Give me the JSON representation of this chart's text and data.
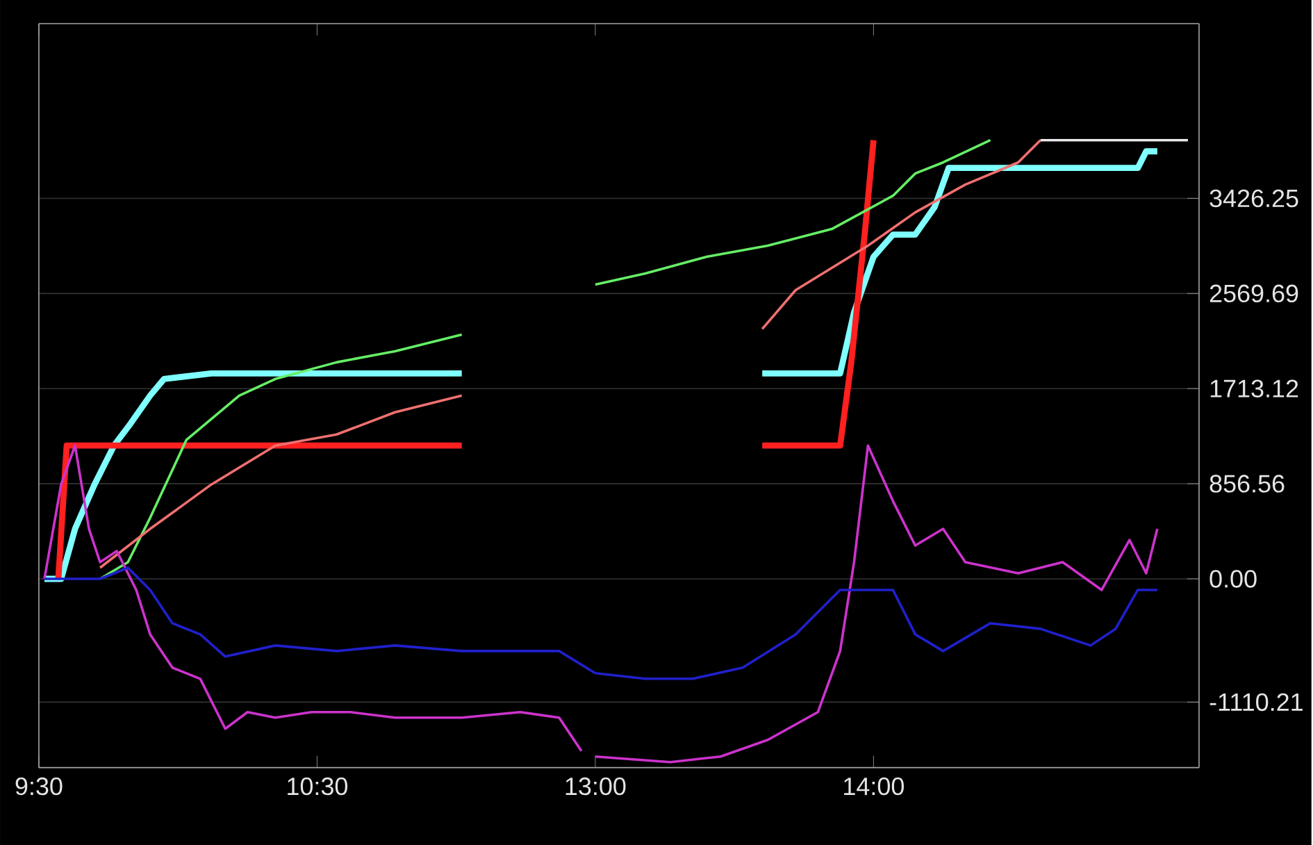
{
  "chart_data": [
    {
      "type": "line",
      "xlim": [
        9.5,
        11.5
      ],
      "ylim": [
        -1700,
        5000
      ],
      "xticks": [
        {
          "value": 9.5,
          "label": "9:30"
        },
        {
          "value": 10.5,
          "label": "10:30"
        }
      ],
      "yticks": [
        3426.25,
        2569.69,
        1713.12,
        856.56,
        0,
        -1110.21
      ],
      "tick_labels": "x",
      "grid": "y",
      "series": [
        {
          "color": "#7fffff",
          "x": [
            9.52,
            9.58,
            9.63,
            9.7,
            9.77,
            9.83,
            9.9,
            9.95,
            10.12,
            11.02
          ],
          "values": [
            0,
            0,
            450,
            850,
            1200,
            1400,
            1650,
            1800,
            1850,
            1850
          ]
        },
        {
          "color": "#ff2020",
          "x": [
            9.57,
            9.6,
            11.02
          ],
          "values": [
            0,
            1200,
            1200
          ]
        },
        {
          "color": "#66ee66",
          "x": [
            9.72,
            9.82,
            9.9,
            10.03,
            10.22,
            10.35,
            10.57,
            10.78,
            11.02
          ],
          "values": [
            0,
            150,
            550,
            1250,
            1650,
            1800,
            1950,
            2050,
            2200
          ]
        },
        {
          "color": "#f07070",
          "x": [
            9.72,
            9.9,
            10.12,
            10.35,
            10.57,
            10.78,
            11.02
          ],
          "values": [
            100,
            450,
            850,
            1200,
            1300,
            1500,
            1650
          ]
        },
        {
          "color": "#cc33cc",
          "x": [
            9.52,
            9.58,
            9.63,
            9.68,
            9.72,
            9.78,
            9.85,
            9.9,
            9.98,
            10.08,
            10.17,
            10.25,
            10.35,
            10.48,
            10.62,
            10.78,
            11.02,
            11.23,
            11.37,
            11.45
          ],
          "values": [
            0,
            850,
            1200,
            450,
            150,
            250,
            -100,
            -500,
            -800,
            -900,
            -1350,
            -1200,
            -1250,
            -1200,
            -1200,
            -1250,
            -1250,
            -1200,
            -1250,
            -1550
          ]
        },
        {
          "color": "#2020cc",
          "x": [
            9.52,
            9.72,
            9.82,
            9.9,
            9.98,
            10.08,
            10.17,
            10.35,
            10.57,
            10.78,
            11.02,
            11.23,
            11.37,
            11.5
          ],
          "values": [
            0,
            0,
            100,
            -100,
            -400,
            -500,
            -700,
            -600,
            -650,
            -600,
            -650,
            -650,
            -650,
            -850
          ]
        }
      ]
    },
    {
      "type": "line",
      "xlim": [
        13,
        15.17
      ],
      "ylim": [
        -1700,
        5000
      ],
      "xticks": [
        {
          "value": 13,
          "label": "13:00"
        },
        {
          "value": 14,
          "label": "14:00"
        }
      ],
      "yticks": [
        3426.25,
        2569.69,
        1713.12,
        856.56,
        {
          "value": 0,
          "label": "0.00"
        },
        -1110.21
      ],
      "grid": "y",
      "series": [
        {
          "color": "#7fffff",
          "x": [
            13.6,
            13.88,
            13.93,
            14,
            14.07,
            14.15,
            14.22,
            14.27,
            14.95,
            14.98,
            15.02
          ],
          "values": [
            1850,
            1850,
            2400,
            2900,
            3100,
            3100,
            3350,
            3700,
            3700,
            3850,
            3850
          ]
        },
        {
          "color": "#ff2020",
          "x": [
            13.6,
            13.88,
            13.92,
            13.97,
            14
          ],
          "values": [
            1200,
            1200,
            1950,
            3150,
            3950
          ]
        },
        {
          "color": "#66ee66",
          "x": [
            13,
            13.18,
            13.4,
            13.62,
            13.85,
            14.07,
            14.15,
            14.25,
            14.42
          ],
          "values": [
            2650,
            2750,
            2900,
            3000,
            3150,
            3450,
            3650,
            3750,
            3950
          ]
        },
        {
          "color": "#f07070",
          "x": [
            13.6,
            13.72,
            13.85,
            13.98,
            14.15,
            14.33,
            14.52,
            14.6
          ],
          "values": [
            2250,
            2600,
            2800,
            3000,
            3300,
            3550,
            3750,
            3950
          ]
        },
        {
          "color": "#e8e8e8",
          "x": [
            14.6,
            15.13
          ],
          "values": [
            3950,
            3950
          ]
        },
        {
          "color": "#cc33cc",
          "x": [
            13,
            13.27,
            13.45,
            13.62,
            13.8,
            13.88,
            13.93,
            13.98,
            14.07,
            14.15,
            14.25,
            14.33,
            14.52,
            14.68,
            14.82,
            14.92,
            14.98,
            15.02
          ],
          "values": [
            -1600,
            -1650,
            -1600,
            -1450,
            -1200,
            -650,
            150,
            1200,
            700,
            300,
            450,
            150,
            50,
            150,
            -100,
            350,
            50,
            450
          ]
        },
        {
          "color": "#2020cc",
          "x": [
            13,
            13.18,
            13.35,
            13.53,
            13.72,
            13.88,
            14.07,
            14.15,
            14.25,
            14.42,
            14.6,
            14.78,
            14.87,
            14.95,
            15.02
          ],
          "values": [
            -850,
            -900,
            -900,
            -800,
            -500,
            -100,
            -100,
            -500,
            -650,
            -400,
            -450,
            -600,
            -450,
            -100,
            -100
          ]
        }
      ]
    }
  ]
}
